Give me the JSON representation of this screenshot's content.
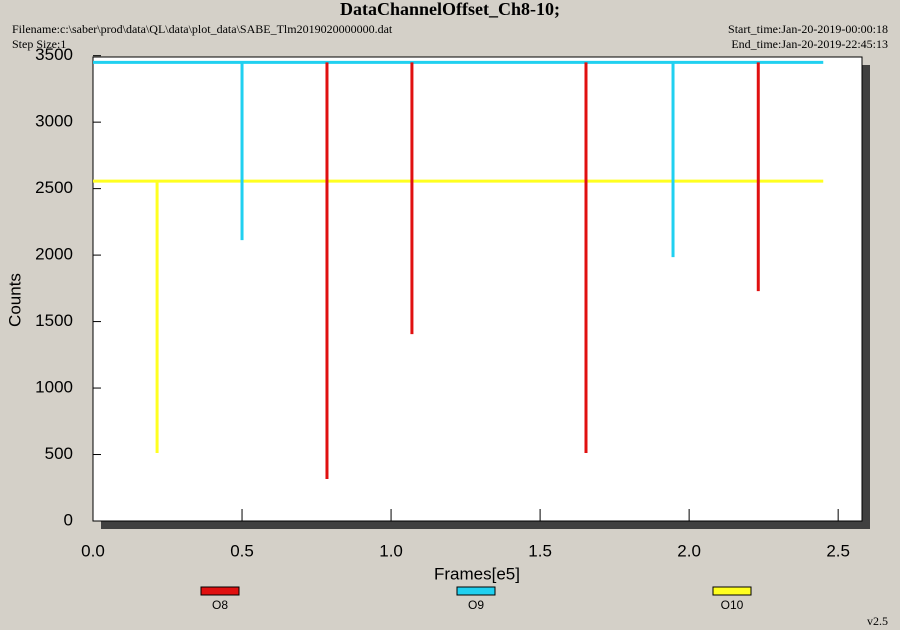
{
  "chart_data": {
    "type": "line",
    "title": "DataChannelOffset_Ch8-10;",
    "filename": "Filename:c:\\saber\\prod\\data\\QL\\data\\plot_data\\SABE_Tlm2019020000000.dat",
    "step_size": "Step Size:1",
    "start_time": "Start_time:Jan-20-2019-00:00:18",
    "end_time": "End_time:Jan-20-2019-22:45:13",
    "version": "v2.5",
    "xlabel": "Frames[e5]",
    "ylabel": "Counts",
    "xlim": [
      0,
      2.58
    ],
    "ylim": [
      0,
      3490
    ],
    "xticks": [
      {
        "value": 0,
        "label": "0.0"
      },
      0.5,
      {
        "value": 1,
        "label": "1.0"
      },
      1.5,
      {
        "value": 2,
        "label": "2.0"
      },
      2.5
    ],
    "yticks": [
      0,
      500,
      1000,
      1500,
      2000,
      2500,
      3000,
      3500
    ],
    "series": [
      {
        "name": "O8",
        "color": "#e01010",
        "x": [
          0.785,
          0.785,
          null,
          1.07,
          1.07,
          null,
          1.654,
          1.654,
          null,
          2.232,
          2.232
        ],
        "values": [
          3450,
          316,
          null,
          3450,
          1406,
          null,
          3450,
          511,
          null,
          3450,
          1729
        ]
      },
      {
        "name": "O9",
        "color": "#20d0f0",
        "x": [
          0,
          0.5,
          0.5,
          0.5,
          1.946,
          1.946,
          1.946,
          2.45
        ],
        "values": [
          3450,
          3450,
          2113,
          3450,
          3450,
          1985,
          3450,
          3450
        ]
      },
      {
        "name": "O10",
        "color": "#ffff20",
        "x": [
          0,
          0.215,
          0.215,
          0.215,
          2.45
        ],
        "values": [
          2556,
          2556,
          511,
          2556,
          2556
        ]
      }
    ]
  }
}
